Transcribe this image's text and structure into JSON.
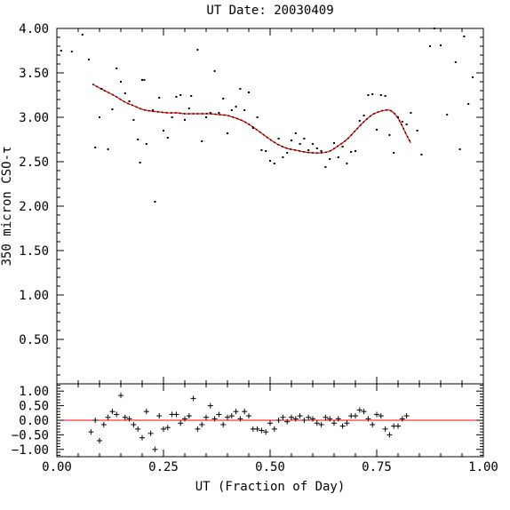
{
  "chart_data": [
    {
      "type": "scatter",
      "title": "UT Date: 20030409",
      "xlabel": "",
      "ylabel": "350 micron CSO-τ",
      "xlim": [
        0.0,
        1.0
      ],
      "ylim": [
        0.0,
        4.0
      ],
      "yticks": [
        "0.50",
        "1.00",
        "1.50",
        "2.00",
        "2.50",
        "3.00",
        "3.50",
        "4.00"
      ],
      "series": [
        {
          "kind": "points",
          "x": [
            0.01,
            0.035,
            0.06,
            0.075,
            0.09,
            0.1,
            0.105,
            0.12,
            0.13,
            0.14,
            0.15,
            0.16,
            0.17,
            0.18,
            0.19,
            0.195,
            0.2,
            0.205,
            0.21,
            0.225,
            0.23,
            0.24,
            0.25,
            0.26,
            0.27,
            0.28,
            0.29,
            0.3,
            0.31,
            0.315,
            0.33,
            0.34,
            0.35,
            0.36,
            0.37,
            0.38,
            0.39,
            0.4,
            0.41,
            0.42,
            0.43,
            0.44,
            0.45,
            0.46,
            0.47,
            0.48,
            0.49,
            0.5,
            0.51,
            0.52,
            0.53,
            0.54,
            0.55,
            0.56,
            0.57,
            0.58,
            0.59,
            0.6,
            0.61,
            0.62,
            0.63,
            0.64,
            0.65,
            0.66,
            0.67,
            0.68,
            0.69,
            0.7,
            0.71,
            0.72,
            0.73,
            0.74,
            0.75,
            0.76,
            0.77,
            0.78,
            0.79,
            0.8,
            0.81,
            0.82,
            0.83,
            0.845,
            0.855,
            0.875,
            0.885,
            0.9,
            0.915,
            0.935,
            0.945,
            0.955,
            0.965,
            0.975
          ],
          "y": [
            3.75,
            3.74,
            3.93,
            3.65,
            2.66,
            3.0,
            3.32,
            2.64,
            3.09,
            3.55,
            3.4,
            3.27,
            3.18,
            2.97,
            2.75,
            2.49,
            3.42,
            3.42,
            2.7,
            3.08,
            2.05,
            3.22,
            2.85,
            2.77,
            3.0,
            3.23,
            3.25,
            2.97,
            3.1,
            3.24,
            3.76,
            2.73,
            3.0,
            3.05,
            3.52,
            3.05,
            3.21,
            2.82,
            3.08,
            3.12,
            3.32,
            3.08,
            3.28,
            2.88,
            3.0,
            2.63,
            2.62,
            2.51,
            2.48,
            2.76,
            2.55,
            2.6,
            2.74,
            2.82,
            2.7,
            2.76,
            2.63,
            2.7,
            2.65,
            2.62,
            2.44,
            2.53,
            2.71,
            2.55,
            2.67,
            2.48,
            2.61,
            2.62,
            2.96,
            3.02,
            3.25,
            3.26,
            2.86,
            3.25,
            3.24,
            2.8,
            2.6,
            3.0,
            2.95,
            2.92,
            3.05,
            2.85,
            2.58,
            3.8,
            4.0,
            3.81,
            3.03,
            3.62,
            2.64,
            3.91,
            3.15,
            3.45
          ]
        },
        {
          "kind": "fit",
          "color": "#ff0000",
          "x": [
            0.085,
            0.1,
            0.12,
            0.14,
            0.16,
            0.18,
            0.2,
            0.22,
            0.24,
            0.26,
            0.28,
            0.3,
            0.32,
            0.34,
            0.36,
            0.38,
            0.4,
            0.42,
            0.44,
            0.46,
            0.48,
            0.5,
            0.52,
            0.54,
            0.56,
            0.58,
            0.6,
            0.62,
            0.64,
            0.66,
            0.68,
            0.7,
            0.72,
            0.74,
            0.76,
            0.77,
            0.78,
            0.79,
            0.8,
            0.81,
            0.82,
            0.83
          ],
          "y": [
            3.37,
            3.33,
            3.28,
            3.23,
            3.17,
            3.13,
            3.09,
            3.07,
            3.06,
            3.05,
            3.05,
            3.04,
            3.04,
            3.04,
            3.04,
            3.03,
            3.02,
            2.99,
            2.95,
            2.89,
            2.82,
            2.75,
            2.69,
            2.65,
            2.63,
            2.61,
            2.6,
            2.6,
            2.62,
            2.68,
            2.75,
            2.85,
            2.95,
            3.03,
            3.07,
            3.08,
            3.08,
            3.05,
            2.99,
            2.9,
            2.8,
            2.71
          ]
        }
      ]
    },
    {
      "type": "scatter",
      "title": "",
      "xlabel": "UT (Fraction of Day)",
      "ylabel": "",
      "xlim": [
        0.0,
        1.0
      ],
      "ylim": [
        -1.25,
        1.25
      ],
      "xticks": [
        "0.00",
        "0.25",
        "0.50",
        "0.75",
        "1.00"
      ],
      "yticks": [
        "−1.00",
        "−0.50",
        "0.00",
        "0.50",
        "1.00"
      ],
      "series": [
        {
          "kind": "residuals",
          "x": [
            0.08,
            0.09,
            0.1,
            0.11,
            0.12,
            0.13,
            0.14,
            0.15,
            0.16,
            0.17,
            0.18,
            0.19,
            0.2,
            0.21,
            0.22,
            0.23,
            0.24,
            0.25,
            0.26,
            0.27,
            0.28,
            0.29,
            0.3,
            0.31,
            0.32,
            0.33,
            0.34,
            0.35,
            0.36,
            0.37,
            0.38,
            0.39,
            0.4,
            0.41,
            0.42,
            0.43,
            0.44,
            0.45,
            0.46,
            0.47,
            0.48,
            0.49,
            0.5,
            0.51,
            0.52,
            0.53,
            0.54,
            0.55,
            0.56,
            0.57,
            0.58,
            0.59,
            0.6,
            0.61,
            0.62,
            0.63,
            0.64,
            0.65,
            0.66,
            0.67,
            0.68,
            0.69,
            0.7,
            0.71,
            0.72,
            0.73,
            0.74,
            0.75,
            0.76,
            0.77,
            0.78,
            0.79,
            0.8,
            0.81,
            0.82
          ],
          "y": [
            -0.4,
            0.0,
            -0.7,
            -0.15,
            0.1,
            0.3,
            0.2,
            0.85,
            0.1,
            0.05,
            -0.15,
            -0.3,
            -0.6,
            0.3,
            -0.45,
            -1.0,
            0.15,
            -0.3,
            -0.25,
            0.2,
            0.2,
            -0.1,
            0.05,
            0.15,
            0.75,
            -0.3,
            -0.15,
            0.1,
            0.5,
            0.05,
            0.2,
            -0.15,
            0.1,
            0.15,
            0.3,
            0.05,
            0.3,
            0.15,
            -0.3,
            -0.3,
            -0.35,
            -0.4,
            -0.1,
            -0.3,
            0.0,
            0.1,
            -0.05,
            0.1,
            0.05,
            0.15,
            0.0,
            0.1,
            0.05,
            -0.1,
            -0.15,
            0.1,
            0.05,
            -0.1,
            0.05,
            -0.2,
            -0.1,
            0.15,
            0.15,
            0.35,
            0.3,
            0.05,
            -0.15,
            0.2,
            0.15,
            -0.3,
            -0.5,
            -0.2,
            -0.2,
            0.05,
            0.15
          ]
        },
        {
          "kind": "zero-line",
          "color": "#ff0000",
          "y": 0.0
        }
      ]
    }
  ]
}
